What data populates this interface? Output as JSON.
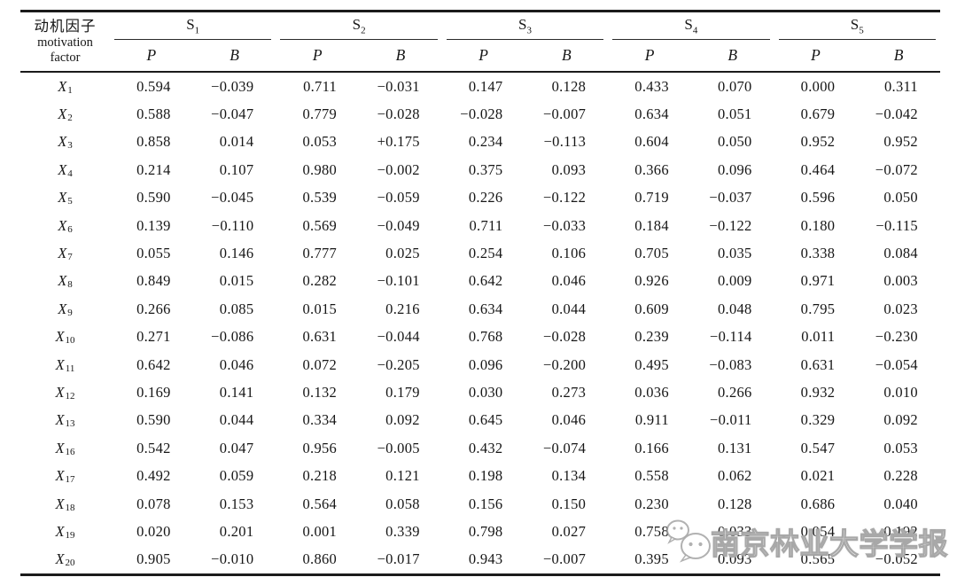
{
  "table": {
    "row_header": {
      "zh": "动机因子",
      "en_line1": "motivation",
      "en_line2": "factor"
    },
    "groups": [
      {
        "base": "S",
        "sub": "1"
      },
      {
        "base": "S",
        "sub": "2"
      },
      {
        "base": "S",
        "sub": "3"
      },
      {
        "base": "S",
        "sub": "4"
      },
      {
        "base": "S",
        "sub": "5"
      }
    ],
    "subheaders": [
      "P",
      "B"
    ],
    "rows": [
      {
        "base": "X",
        "sub": "1",
        "values": [
          "0.594",
          "−0.039",
          "0.711",
          "−0.031",
          "0.147",
          "0.128",
          "0.433",
          "0.070",
          "0.000",
          "0.311"
        ]
      },
      {
        "base": "X",
        "sub": "2",
        "values": [
          "0.588",
          "−0.047",
          "0.779",
          "−0.028",
          "−0.028",
          "−0.007",
          "0.634",
          "0.051",
          "0.679",
          "−0.042"
        ]
      },
      {
        "base": "X",
        "sub": "3",
        "values": [
          "0.858",
          "0.014",
          "0.053",
          "+0.175",
          "0.234",
          "−0.113",
          "0.604",
          "0.050",
          "0.952",
          "0.952"
        ]
      },
      {
        "base": "X",
        "sub": "4",
        "values": [
          "0.214",
          "0.107",
          "0.980",
          "−0.002",
          "0.375",
          "0.093",
          "0.366",
          "0.096",
          "0.464",
          "−0.072"
        ]
      },
      {
        "base": "X",
        "sub": "5",
        "values": [
          "0.590",
          "−0.045",
          "0.539",
          "−0.059",
          "0.226",
          "−0.122",
          "0.719",
          "−0.037",
          "0.596",
          "0.050"
        ]
      },
      {
        "base": "X",
        "sub": "6",
        "values": [
          "0.139",
          "−0.110",
          "0.569",
          "−0.049",
          "0.711",
          "−0.033",
          "0.184",
          "−0.122",
          "0.180",
          "−0.115"
        ]
      },
      {
        "base": "X",
        "sub": "7",
        "values": [
          "0.055",
          "0.146",
          "0.777",
          "0.025",
          "0.254",
          "0.106",
          "0.705",
          "0.035",
          "0.338",
          "0.084"
        ]
      },
      {
        "base": "X",
        "sub": "8",
        "values": [
          "0.849",
          "0.015",
          "0.282",
          "−0.101",
          "0.642",
          "0.046",
          "0.926",
          "0.009",
          "0.971",
          "0.003"
        ]
      },
      {
        "base": "X",
        "sub": "9",
        "values": [
          "0.266",
          "0.085",
          "0.015",
          "0.216",
          "0.634",
          "0.044",
          "0.609",
          "0.048",
          "0.795",
          "0.023"
        ]
      },
      {
        "base": "X",
        "sub": "10",
        "values": [
          "0.271",
          "−0.086",
          "0.631",
          "−0.044",
          "0.768",
          "−0.028",
          "0.239",
          "−0.114",
          "0.011",
          "−0.230"
        ]
      },
      {
        "base": "X",
        "sub": "11",
        "values": [
          "0.642",
          "0.046",
          "0.072",
          "−0.205",
          "0.096",
          "−0.200",
          "0.495",
          "−0.083",
          "0.631",
          "−0.054"
        ]
      },
      {
        "base": "X",
        "sub": "12",
        "values": [
          "0.169",
          "0.141",
          "0.132",
          "0.179",
          "0.030",
          "0.273",
          "0.036",
          "0.266",
          "0.932",
          "0.010"
        ]
      },
      {
        "base": "X",
        "sub": "13",
        "values": [
          "0.590",
          "0.044",
          "0.334",
          "0.092",
          "0.645",
          "0.046",
          "0.911",
          "−0.011",
          "0.329",
          "0.092"
        ]
      },
      {
        "base": "X",
        "sub": "16",
        "values": [
          "0.542",
          "0.047",
          "0.956",
          "−0.005",
          "0.432",
          "−0.074",
          "0.166",
          "0.131",
          "0.547",
          "0.053"
        ]
      },
      {
        "base": "X",
        "sub": "17",
        "values": [
          "0.492",
          "0.059",
          "0.218",
          "0.121",
          "0.198",
          "0.134",
          "0.558",
          "0.062",
          "0.021",
          "0.228"
        ]
      },
      {
        "base": "X",
        "sub": "18",
        "values": [
          "0.078",
          "0.153",
          "0.564",
          "0.058",
          "0.156",
          "0.150",
          "0.230",
          "0.128",
          "0.686",
          "0.040"
        ]
      },
      {
        "base": "X",
        "sub": "19",
        "values": [
          "0.020",
          "0.201",
          "0.001",
          "0.339",
          "0.798",
          "0.027",
          "0.758",
          "0.033",
          "0.054",
          "0.192"
        ]
      },
      {
        "base": "X",
        "sub": "20",
        "values": [
          "0.905",
          "−0.010",
          "0.860",
          "−0.017",
          "0.943",
          "−0.007",
          "0.395",
          "0.093",
          "0.565",
          "−0.052"
        ]
      }
    ]
  },
  "watermark": {
    "text": "南京林业大学学报"
  }
}
